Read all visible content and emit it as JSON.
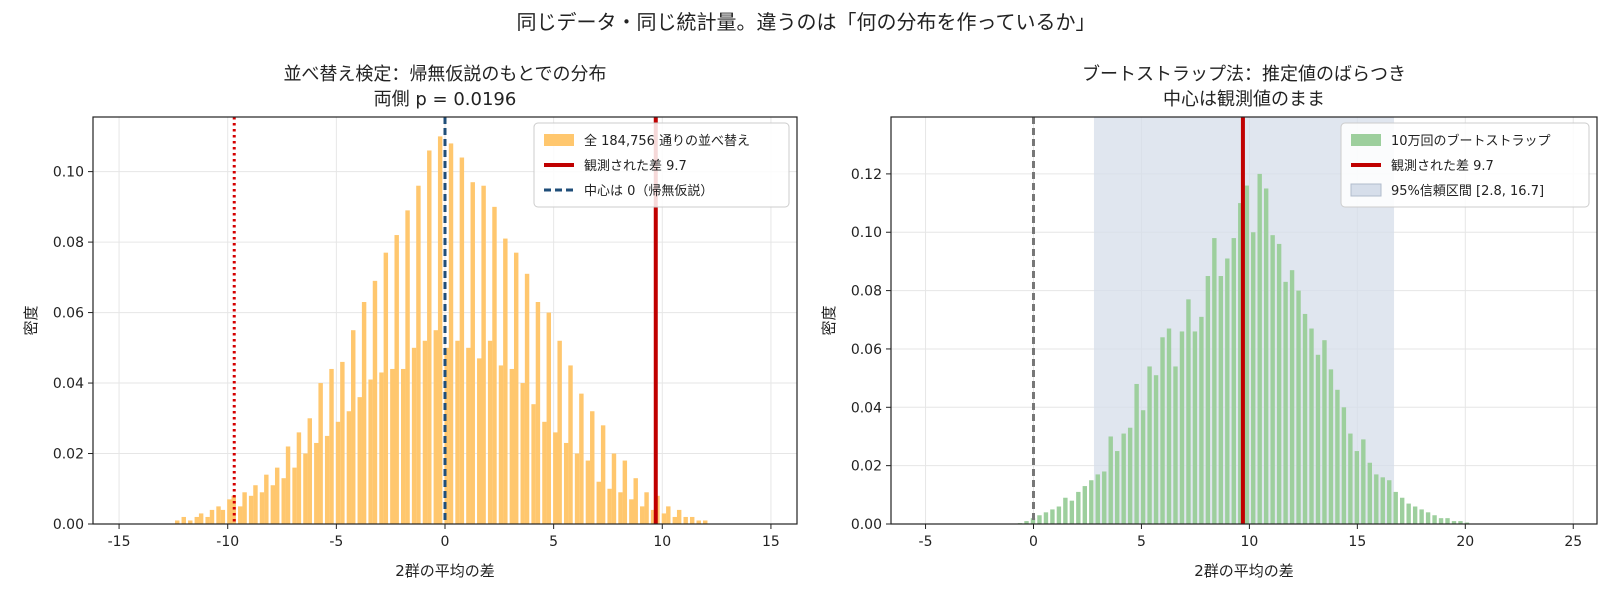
{
  "figure_title": "同じデータ・同じ統計量。違うのは「何の分布を作っているか」",
  "chart_data": [
    {
      "type": "bar",
      "title": "並べ替え検定：帰無仮説のもとでの分布",
      "subtitle": "両側 p = 0.0196",
      "xlabel": "2群の平均の差",
      "ylabel": "密度",
      "xlim": [
        -16.2,
        16.2
      ],
      "ylim": [
        0,
        0.1155
      ],
      "xticks": [
        -15,
        -10,
        -5,
        0,
        5,
        10,
        15
      ],
      "xtick_labels": [
        "-15",
        "-10",
        "-5",
        "0",
        "5",
        "10",
        "15"
      ],
      "yticks": [
        0,
        0.02,
        0.04,
        0.06,
        0.08,
        0.1
      ],
      "ytick_labels": [
        "0.00",
        "0.02",
        "0.04",
        "0.06",
        "0.08",
        "0.10"
      ],
      "grid": true,
      "legend_position": "top-right",
      "bar_color": "#ffc76e",
      "bin_width": 0.25,
      "bins": [
        [
          -12.3,
          0.001
        ],
        [
          -12.0,
          0.002
        ],
        [
          -11.7,
          0.001
        ],
        [
          -11.4,
          0.002
        ],
        [
          -11.2,
          0.003
        ],
        [
          -10.9,
          0.002
        ],
        [
          -10.7,
          0.004
        ],
        [
          -10.4,
          0.005
        ],
        [
          -10.2,
          0.004
        ],
        [
          -9.9,
          0.007
        ],
        [
          -9.7,
          0.008
        ],
        [
          -9.4,
          0.005
        ],
        [
          -9.2,
          0.009
        ],
        [
          -8.9,
          0.008
        ],
        [
          -8.7,
          0.011
        ],
        [
          -8.4,
          0.009
        ],
        [
          -8.2,
          0.014
        ],
        [
          -7.9,
          0.011
        ],
        [
          -7.7,
          0.016
        ],
        [
          -7.4,
          0.013
        ],
        [
          -7.2,
          0.022
        ],
        [
          -6.9,
          0.016
        ],
        [
          -6.7,
          0.026
        ],
        [
          -6.4,
          0.02
        ],
        [
          -6.2,
          0.03
        ],
        [
          -5.9,
          0.023
        ],
        [
          -5.7,
          0.04
        ],
        [
          -5.4,
          0.025
        ],
        [
          -5.2,
          0.044
        ],
        [
          -4.9,
          0.029
        ],
        [
          -4.7,
          0.046
        ],
        [
          -4.4,
          0.032
        ],
        [
          -4.2,
          0.055
        ],
        [
          -3.9,
          0.036
        ],
        [
          -3.7,
          0.063
        ],
        [
          -3.4,
          0.041
        ],
        [
          -3.2,
          0.069
        ],
        [
          -2.9,
          0.043
        ],
        [
          -2.7,
          0.077
        ],
        [
          -2.4,
          0.044
        ],
        [
          -2.2,
          0.082
        ],
        [
          -1.9,
          0.044
        ],
        [
          -1.7,
          0.089
        ],
        [
          -1.4,
          0.05
        ],
        [
          -1.2,
          0.096
        ],
        [
          -0.9,
          0.052
        ],
        [
          -0.7,
          0.106
        ],
        [
          -0.4,
          0.055
        ],
        [
          -0.2,
          0.11
        ],
        [
          0.1,
          0.05
        ],
        [
          0.3,
          0.108
        ],
        [
          0.6,
          0.052
        ],
        [
          0.8,
          0.104
        ],
        [
          1.1,
          0.05
        ],
        [
          1.3,
          0.097
        ],
        [
          1.6,
          0.047
        ],
        [
          1.8,
          0.096
        ],
        [
          2.1,
          0.052
        ],
        [
          2.3,
          0.09
        ],
        [
          2.6,
          0.045
        ],
        [
          2.8,
          0.081
        ],
        [
          3.1,
          0.044
        ],
        [
          3.3,
          0.077
        ],
        [
          3.6,
          0.04
        ],
        [
          3.8,
          0.071
        ],
        [
          4.1,
          0.034
        ],
        [
          4.3,
          0.063
        ],
        [
          4.6,
          0.029
        ],
        [
          4.8,
          0.06
        ],
        [
          5.1,
          0.026
        ],
        [
          5.3,
          0.052
        ],
        [
          5.6,
          0.023
        ],
        [
          5.8,
          0.045
        ],
        [
          6.1,
          0.02
        ],
        [
          6.3,
          0.037
        ],
        [
          6.6,
          0.018
        ],
        [
          6.8,
          0.032
        ],
        [
          7.1,
          0.012
        ],
        [
          7.3,
          0.028
        ],
        [
          7.6,
          0.01
        ],
        [
          7.8,
          0.02
        ],
        [
          8.1,
          0.009
        ],
        [
          8.3,
          0.018
        ],
        [
          8.6,
          0.007
        ],
        [
          8.8,
          0.013
        ],
        [
          9.1,
          0.005
        ],
        [
          9.3,
          0.009
        ],
        [
          9.6,
          0.004
        ],
        [
          9.8,
          0.008
        ],
        [
          10.1,
          0.003
        ],
        [
          10.3,
          0.005
        ],
        [
          10.6,
          0.002
        ],
        [
          10.8,
          0.004
        ],
        [
          11.1,
          0.002
        ],
        [
          11.4,
          0.002
        ],
        [
          11.7,
          0.001
        ],
        [
          12.0,
          0.001
        ]
      ],
      "lines": [
        {
          "label": "観測された差 9.7",
          "x": 9.7,
          "color": "#c00000",
          "style": "solid",
          "legend": true
        },
        {
          "label": "中心は 0（帰無仮説）",
          "x": 0,
          "color": "#1f4e79",
          "style": "dashed",
          "legend": true
        },
        {
          "x": -9.7,
          "color": "#d40000",
          "style": "dotted",
          "legend": false
        }
      ],
      "legend": [
        {
          "kind": "patch",
          "color": "#ffc76e",
          "label": "全 184,756 通りの並べ替え"
        },
        {
          "kind": "line",
          "color": "#c00000",
          "style": "solid",
          "label": "観測された差 9.7"
        },
        {
          "kind": "line",
          "color": "#1f4e79",
          "style": "dashed",
          "label": "中心は 0（帰無仮説）"
        }
      ]
    },
    {
      "type": "bar",
      "title": "ブートストラップ法：推定値のばらつき",
      "subtitle": "中心は観測値のまま",
      "xlabel": "2群の平均の差",
      "ylabel": "密度",
      "xlim": [
        -6.6,
        26.1
      ],
      "ylim": [
        0,
        0.1395
      ],
      "xticks": [
        -5,
        0,
        5,
        10,
        15,
        20,
        25
      ],
      "xtick_labels": [
        "-5",
        "0",
        "5",
        "10",
        "15",
        "20",
        "25"
      ],
      "yticks": [
        0,
        0.02,
        0.04,
        0.06,
        0.08,
        0.1,
        0.12
      ],
      "ytick_labels": [
        "0.00",
        "0.02",
        "0.04",
        "0.06",
        "0.08",
        "0.10",
        "0.12"
      ],
      "grid": true,
      "legend_position": "top-right",
      "bar_color": "#9dcf9d",
      "bin_width": 0.25,
      "ci": [
        2.8,
        16.7
      ],
      "ci_color": "#d6deea",
      "bins": [
        [
          -0.6,
          0.0003
        ],
        [
          -0.3,
          0.001
        ],
        [
          0.0,
          0.002
        ],
        [
          0.3,
          0.003
        ],
        [
          0.6,
          0.004
        ],
        [
          0.9,
          0.005
        ],
        [
          1.2,
          0.006
        ],
        [
          1.5,
          0.009
        ],
        [
          1.8,
          0.008
        ],
        [
          2.1,
          0.011
        ],
        [
          2.4,
          0.013
        ],
        [
          2.7,
          0.015
        ],
        [
          3.0,
          0.017
        ],
        [
          3.3,
          0.018
        ],
        [
          3.6,
          0.03
        ],
        [
          3.9,
          0.025
        ],
        [
          4.2,
          0.031
        ],
        [
          4.5,
          0.033
        ],
        [
          4.8,
          0.048
        ],
        [
          5.1,
          0.039
        ],
        [
          5.4,
          0.054
        ],
        [
          5.7,
          0.051
        ],
        [
          6.0,
          0.064
        ],
        [
          6.3,
          0.067
        ],
        [
          6.6,
          0.054
        ],
        [
          6.9,
          0.066
        ],
        [
          7.2,
          0.077
        ],
        [
          7.5,
          0.066
        ],
        [
          7.8,
          0.071
        ],
        [
          8.1,
          0.085
        ],
        [
          8.4,
          0.098
        ],
        [
          8.7,
          0.085
        ],
        [
          9.0,
          0.091
        ],
        [
          9.3,
          0.098
        ],
        [
          9.6,
          0.11
        ],
        [
          9.9,
          0.116
        ],
        [
          10.2,
          0.1
        ],
        [
          10.5,
          0.12
        ],
        [
          10.8,
          0.115
        ],
        [
          11.1,
          0.099
        ],
        [
          11.4,
          0.096
        ],
        [
          11.7,
          0.083
        ],
        [
          12.0,
          0.087
        ],
        [
          12.3,
          0.08
        ],
        [
          12.6,
          0.072
        ],
        [
          12.9,
          0.067
        ],
        [
          13.2,
          0.058
        ],
        [
          13.5,
          0.063
        ],
        [
          13.8,
          0.053
        ],
        [
          14.1,
          0.046
        ],
        [
          14.4,
          0.04
        ],
        [
          14.7,
          0.031
        ],
        [
          15.0,
          0.025
        ],
        [
          15.3,
          0.029
        ],
        [
          15.6,
          0.021
        ],
        [
          15.9,
          0.017
        ],
        [
          16.2,
          0.016
        ],
        [
          16.5,
          0.015
        ],
        [
          16.8,
          0.011
        ],
        [
          17.1,
          0.009
        ],
        [
          17.4,
          0.007
        ],
        [
          17.7,
          0.006
        ],
        [
          18.0,
          0.005
        ],
        [
          18.3,
          0.004
        ],
        [
          18.6,
          0.003
        ],
        [
          18.9,
          0.002
        ],
        [
          19.2,
          0.002
        ],
        [
          19.5,
          0.001
        ],
        [
          19.8,
          0.001
        ],
        [
          20.1,
          0.0005
        ]
      ],
      "lines": [
        {
          "label": "観測された差 9.7",
          "x": 9.7,
          "color": "#c00000",
          "style": "solid",
          "legend": true
        },
        {
          "x": 0,
          "color": "#777777",
          "style": "dashed",
          "legend": false
        }
      ],
      "legend": [
        {
          "kind": "patch",
          "color": "#9dcf9d",
          "label": "10万回のブートストラップ"
        },
        {
          "kind": "line",
          "color": "#c00000",
          "style": "solid",
          "label": "観測された差 9.7"
        },
        {
          "kind": "patch",
          "color": "#d6deea",
          "label": "95%信頼区間 [2.8, 16.7]"
        }
      ]
    }
  ]
}
